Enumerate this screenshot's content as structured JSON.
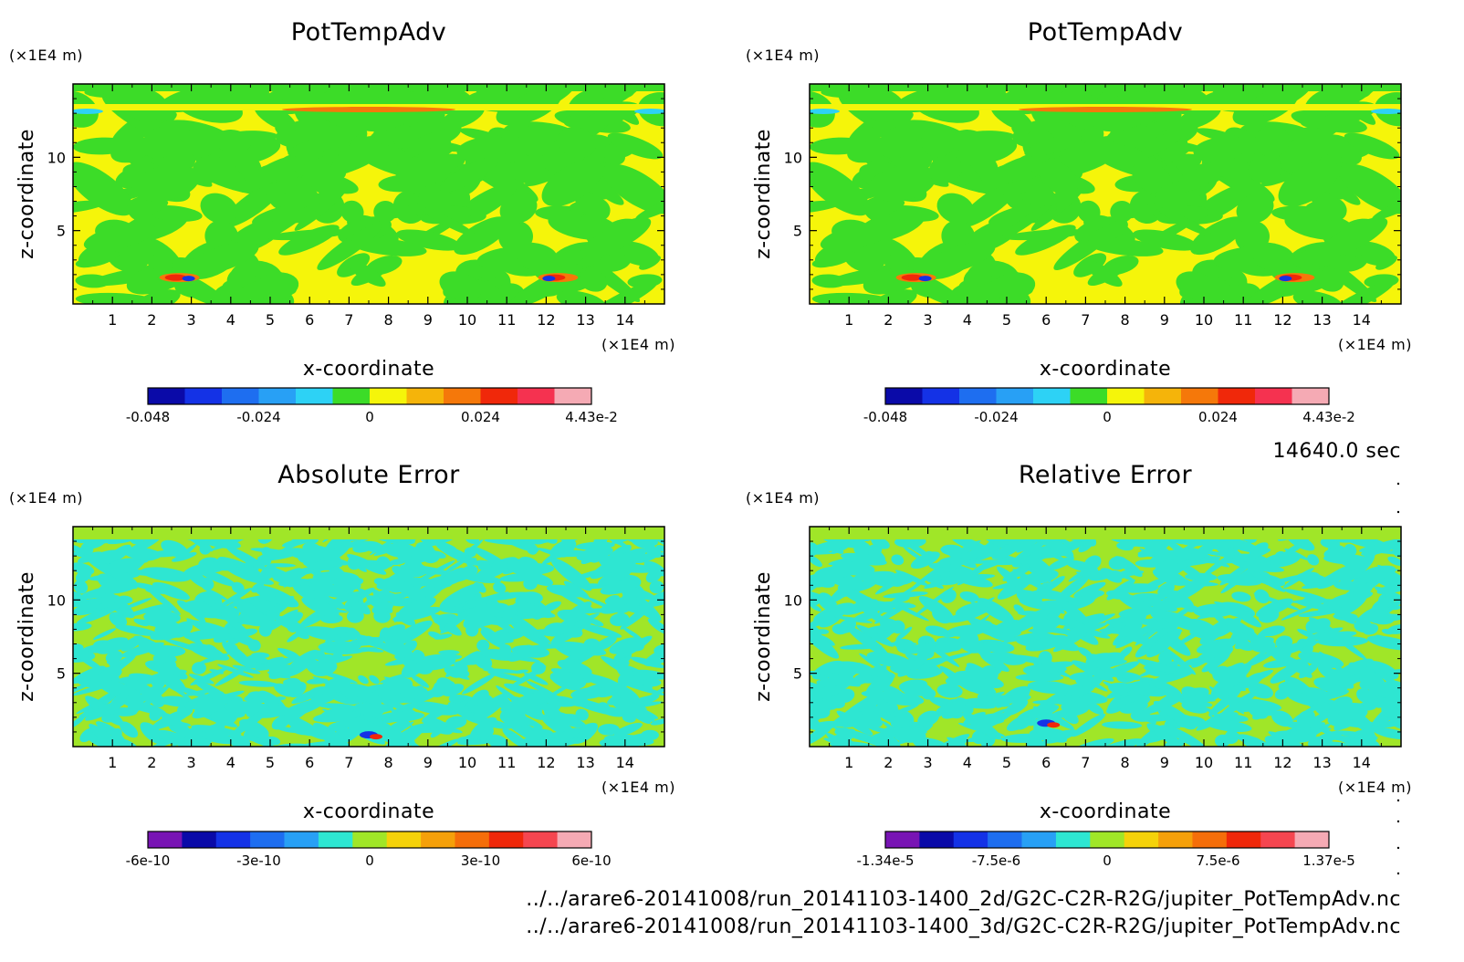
{
  "chart_data": [
    {
      "type": "heatmap",
      "title": "PotTempAdv",
      "xlabel": "x-coordinate",
      "ylabel": "z-coordinate",
      "x_unit": "(×1E4 m)",
      "y_unit": "(×1E4 m)",
      "xlim": [
        0,
        15
      ],
      "ylim": [
        0,
        15
      ],
      "x_ticks": [
        "1",
        "2",
        "3",
        "4",
        "5",
        "6",
        "7",
        "8",
        "9",
        "10",
        "11",
        "12",
        "13",
        "14"
      ],
      "y_ticks": [
        "5",
        "10"
      ],
      "colorbar": {
        "colors": [
          "#0a0aa8",
          "#1432e6",
          "#1e6ef0",
          "#28a0f5",
          "#2dd2f5",
          "#3cdc28",
          "#f5f50a",
          "#f5b40a",
          "#f5780a",
          "#f0280a",
          "#f53250",
          "#f5aab4"
        ],
        "tick_labels": [
          "-0.048",
          "-0.024",
          "0",
          "0.024",
          "4.43e-2"
        ],
        "min": -0.048,
        "max": 0.0443
      },
      "field": {
        "background": "#f5f50a",
        "secondary": "#3cdc28",
        "accents": [
          "#2dd2f5",
          "#f5780a",
          "#f0280a",
          "#1432e6"
        ]
      }
    },
    {
      "type": "heatmap",
      "title": "PotTempAdv",
      "xlabel": "x-coordinate",
      "ylabel": "z-coordinate",
      "x_unit": "(×1E4 m)",
      "y_unit": "(×1E4 m)",
      "xlim": [
        0,
        15
      ],
      "ylim": [
        0,
        15
      ],
      "x_ticks": [
        "1",
        "2",
        "3",
        "4",
        "5",
        "6",
        "7",
        "8",
        "9",
        "10",
        "11",
        "12",
        "13",
        "14"
      ],
      "y_ticks": [
        "5",
        "10"
      ],
      "colorbar": {
        "colors": [
          "#0a0aa8",
          "#1432e6",
          "#1e6ef0",
          "#28a0f5",
          "#2dd2f5",
          "#3cdc28",
          "#f5f50a",
          "#f5b40a",
          "#f5780a",
          "#f0280a",
          "#f53250",
          "#f5aab4"
        ],
        "tick_labels": [
          "-0.048",
          "-0.024",
          "0",
          "0.024",
          "4.43e-2"
        ],
        "min": -0.048,
        "max": 0.0443
      },
      "field": {
        "background": "#f5f50a",
        "secondary": "#3cdc28",
        "accents": [
          "#2dd2f5",
          "#f5780a",
          "#f0280a",
          "#1432e6"
        ]
      }
    },
    {
      "type": "heatmap",
      "title": "Absolute Error",
      "xlabel": "x-coordinate",
      "ylabel": "z-coordinate",
      "x_unit": "(×1E4 m)",
      "y_unit": "(×1E4 m)",
      "xlim": [
        0,
        15
      ],
      "ylim": [
        0,
        15
      ],
      "x_ticks": [
        "1",
        "2",
        "3",
        "4",
        "5",
        "6",
        "7",
        "8",
        "9",
        "10",
        "11",
        "12",
        "13",
        "14"
      ],
      "y_ticks": [
        "5",
        "10"
      ],
      "colorbar": {
        "colors": [
          "#7814b4",
          "#0a0aa8",
          "#1432e6",
          "#1e6ef0",
          "#28a0f5",
          "#2ee6d2",
          "#a0e628",
          "#f5d20a",
          "#f5a00a",
          "#f56e0a",
          "#f0280a",
          "#f54650",
          "#f5aab4"
        ],
        "tick_labels": [
          "-6e-10",
          "-3e-10",
          "0",
          "3e-10",
          "6e-10"
        ],
        "min": -6e-10,
        "max": 6e-10
      },
      "field": {
        "background": "#a0e628",
        "secondary": "#2ee6d2",
        "accents": [
          "#1432e6",
          "#f0280a",
          "#f5a00a"
        ]
      }
    },
    {
      "type": "heatmap",
      "title": "Relative Error",
      "xlabel": "x-coordinate",
      "ylabel": "z-coordinate",
      "x_unit": "(×1E4 m)",
      "y_unit": "(×1E4 m)",
      "xlim": [
        0,
        15
      ],
      "ylim": [
        0,
        15
      ],
      "x_ticks": [
        "1",
        "2",
        "3",
        "4",
        "5",
        "6",
        "7",
        "8",
        "9",
        "10",
        "11",
        "12",
        "13",
        "14"
      ],
      "y_ticks": [
        "5",
        "10"
      ],
      "colorbar": {
        "colors": [
          "#7814b4",
          "#0a0aa8",
          "#1432e6",
          "#1e6ef0",
          "#28a0f5",
          "#2ee6d2",
          "#a0e628",
          "#f5d20a",
          "#f5a00a",
          "#f56e0a",
          "#f0280a",
          "#f54650",
          "#f5aab4"
        ],
        "tick_labels": [
          "-1.34e-5",
          "-7.5e-6",
          "0",
          "7.5e-6",
          "1.37e-5"
        ],
        "min": -1.34e-05,
        "max": 1.37e-05
      },
      "field": {
        "background": "#a0e628",
        "secondary": "#2ee6d2",
        "accents": [
          "#1432e6",
          "#f0280a"
        ]
      }
    }
  ],
  "info": {
    "time": "14640.0 sec",
    "file1": "../../arare6-20141008/run_20141103-1400_2d/G2C-C2R-R2G/jupiter_PotTempAdv.nc",
    "file2": "../../arare6-20141008/run_20141103-1400_3d/G2C-C2R-R2G/jupiter_PotTempAdv.nc"
  }
}
